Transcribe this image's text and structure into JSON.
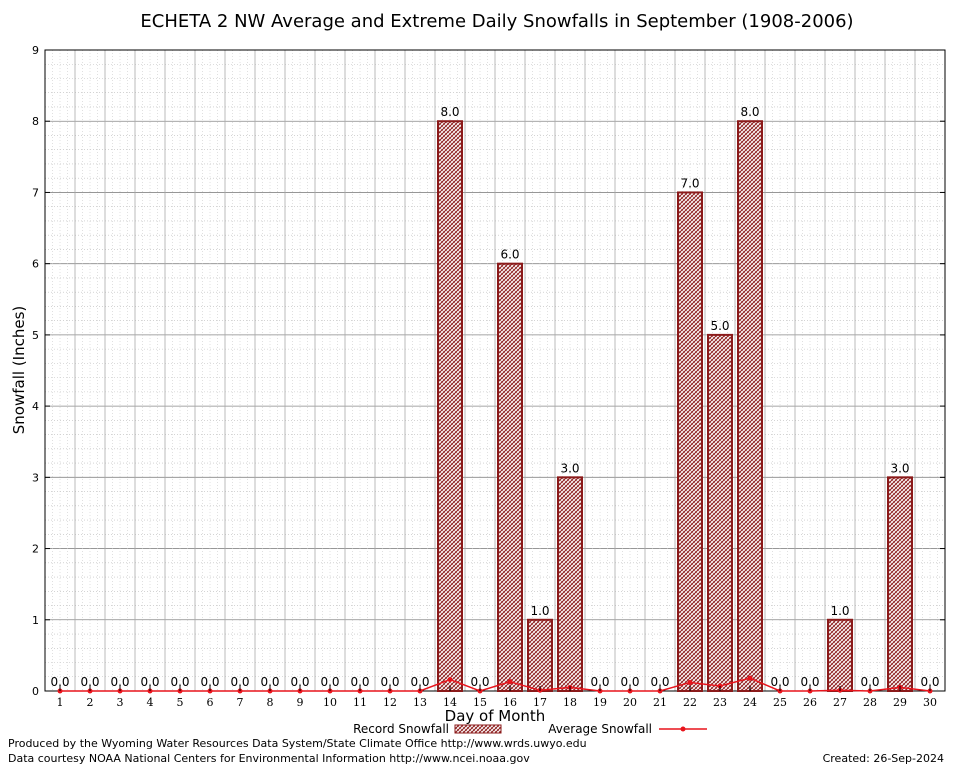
{
  "chart_data": {
    "type": "bar",
    "title": "ECHETA 2 NW Average and Extreme Daily Snowfalls in September (1908-2006)",
    "xlabel": "Day of Month",
    "ylabel": "Snowfall (Inches)",
    "ylim": [
      0,
      9
    ],
    "yticks": [
      "0",
      "1",
      "2",
      "3",
      "4",
      "5",
      "6",
      "7",
      "8",
      "9"
    ],
    "grid": true,
    "legend_position": "bottom",
    "categories": [
      "1",
      "2",
      "3",
      "4",
      "5",
      "6",
      "7",
      "8",
      "9",
      "10",
      "11",
      "12",
      "13",
      "14",
      "15",
      "16",
      "17",
      "18",
      "19",
      "20",
      "21",
      "22",
      "23",
      "24",
      "25",
      "26",
      "27",
      "28",
      "29",
      "30"
    ],
    "series": [
      {
        "name": "Record Snowfall",
        "kind": "bar",
        "color": "#8b1a1a",
        "values": [
          0,
          0,
          0,
          0,
          0,
          0,
          0,
          0,
          0,
          0,
          0,
          0,
          0,
          8,
          0,
          6,
          1,
          3,
          0,
          0,
          0,
          7,
          5,
          8,
          0,
          0,
          1,
          0,
          3,
          0
        ],
        "labels": [
          "0.0",
          "0.0",
          "0.0",
          "0.0",
          "0.0",
          "0.0",
          "0.0",
          "0.0",
          "0.0",
          "0.0",
          "0.0",
          "0.0",
          "0.0",
          "8.0",
          "0.0",
          "6.0",
          "1.0",
          "3.0",
          "0.0",
          "0.0",
          "0.0",
          "7.0",
          "5.0",
          "8.0",
          "0.0",
          "0.0",
          "1.0",
          "0.0",
          "3.0",
          "0.0"
        ]
      },
      {
        "name": "Average Snowfall",
        "kind": "line",
        "color": "#e8141c",
        "values": [
          0,
          0,
          0,
          0,
          0,
          0,
          0,
          0,
          0,
          0,
          0,
          0,
          0,
          0.16,
          0,
          0.13,
          0.01,
          0.05,
          0,
          0,
          0,
          0.12,
          0.07,
          0.18,
          0,
          0,
          0.01,
          0,
          0.05,
          0
        ]
      }
    ]
  },
  "footer": {
    "produced_by": "Produced by the Wyoming Water Resources Data System/State Climate Office http://www.wrds.uwyo.edu",
    "data_courtesy": "Data courtesy NOAA National Centers for Environmental Information http://www.ncei.noaa.gov",
    "created": "Created:  26-Sep-2024"
  }
}
